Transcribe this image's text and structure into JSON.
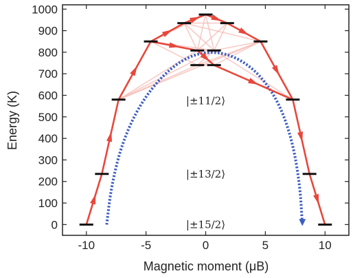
{
  "chart_data": {
    "type": "scatter",
    "title": "",
    "xlabel": "Magnetic moment (μB)",
    "ylabel": "Energy (K)",
    "xlim": [
      -12,
      12
    ],
    "ylim": [
      -50,
      1020
    ],
    "xticks": [
      -10,
      -5,
      0,
      5,
      10
    ],
    "yticks": [
      0,
      100,
      200,
      300,
      400,
      500,
      600,
      700,
      800,
      900,
      1000
    ],
    "grid": false,
    "levels": [
      {
        "x": -10.0,
        "y": 0
      },
      {
        "x": 10.0,
        "y": 0
      },
      {
        "x": -8.7,
        "y": 235
      },
      {
        "x": 8.7,
        "y": 235
      },
      {
        "x": -7.3,
        "y": 580
      },
      {
        "x": 7.3,
        "y": 580
      },
      {
        "x": -4.6,
        "y": 850
      },
      {
        "x": 4.6,
        "y": 850
      },
      {
        "x": -1.8,
        "y": 935
      },
      {
        "x": 1.8,
        "y": 935
      },
      {
        "x": 0.0,
        "y": 975
      },
      {
        "x": -0.7,
        "y": 808
      },
      {
        "x": 0.7,
        "y": 808
      },
      {
        "x": -0.7,
        "y": 740
      },
      {
        "x": 0.7,
        "y": 740
      }
    ],
    "red_path": [
      {
        "x": -10.0,
        "y": 0
      },
      {
        "x": -8.7,
        "y": 235
      },
      {
        "x": -7.3,
        "y": 580
      },
      {
        "x": -4.6,
        "y": 850
      },
      {
        "x": -1.8,
        "y": 935
      },
      {
        "x": 0.0,
        "y": 975
      },
      {
        "x": 1.8,
        "y": 935
      },
      {
        "x": 4.6,
        "y": 850
      },
      {
        "x": 7.3,
        "y": 580
      },
      {
        "x": 8.7,
        "y": 235
      },
      {
        "x": 10.0,
        "y": 0
      }
    ],
    "red_inner_path": [
      {
        "x": -4.6,
        "y": 850
      },
      {
        "x": -0.7,
        "y": 808
      },
      {
        "x": 0.7,
        "y": 740
      },
      {
        "x": 7.3,
        "y": 580
      }
    ],
    "faint_transitions": [
      [
        -7.3,
        580,
        -0.7,
        740
      ],
      [
        -7.3,
        580,
        -0.7,
        808
      ],
      [
        -7.3,
        580,
        0.7,
        808
      ],
      [
        -4.6,
        850,
        -1.8,
        935
      ],
      [
        -4.6,
        850,
        0.0,
        975
      ],
      [
        -4.6,
        850,
        0.7,
        808
      ],
      [
        -4.6,
        850,
        -0.7,
        740
      ],
      [
        -1.8,
        935,
        1.8,
        935
      ],
      [
        -1.8,
        935,
        -0.7,
        808
      ],
      [
        -1.8,
        935,
        0.7,
        808
      ],
      [
        -1.8,
        935,
        4.6,
        850
      ],
      [
        1.8,
        935,
        0.7,
        808
      ],
      [
        1.8,
        935,
        -0.7,
        808
      ],
      [
        0.0,
        975,
        0.7,
        808
      ],
      [
        0.0,
        975,
        -0.7,
        808
      ],
      [
        4.6,
        850,
        0.7,
        740
      ],
      [
        4.6,
        850,
        0.7,
        808
      ],
      [
        4.6,
        850,
        -0.7,
        740
      ],
      [
        -0.7,
        808,
        0.7,
        808
      ],
      [
        -0.7,
        740,
        0.7,
        740
      ],
      [
        -0.7,
        740,
        0.7,
        808
      ],
      [
        -0.7,
        808,
        0.7,
        740
      ],
      [
        7.3,
        580,
        0.7,
        808
      ],
      [
        -7.3,
        580,
        4.6,
        850
      ]
    ],
    "blue_barrier": [
      {
        "x": -8.3,
        "y": 0
      },
      {
        "x": -7.9,
        "y": 180
      },
      {
        "x": -7.0,
        "y": 380
      },
      {
        "x": -5.5,
        "y": 560
      },
      {
        "x": -3.5,
        "y": 700
      },
      {
        "x": -1.5,
        "y": 780
      },
      {
        "x": 0.5,
        "y": 805
      },
      {
        "x": 2.5,
        "y": 780
      },
      {
        "x": 4.5,
        "y": 700
      },
      {
        "x": 6.2,
        "y": 560
      },
      {
        "x": 7.3,
        "y": 380
      },
      {
        "x": 7.9,
        "y": 180
      },
      {
        "x": 8.1,
        "y": 0
      }
    ],
    "state_labels": [
      {
        "text": "|±11/2⟩",
        "x": 0,
        "y": 575
      },
      {
        "text": "|±13/2⟩",
        "x": 0,
        "y": 235
      },
      {
        "text": "|±15/2⟩",
        "x": 0,
        "y": 0
      }
    ],
    "colors": {
      "red": "#e8473c",
      "faint_red": "#f6b9b3",
      "blue": "#3d5ec4",
      "level": "#111111"
    }
  }
}
